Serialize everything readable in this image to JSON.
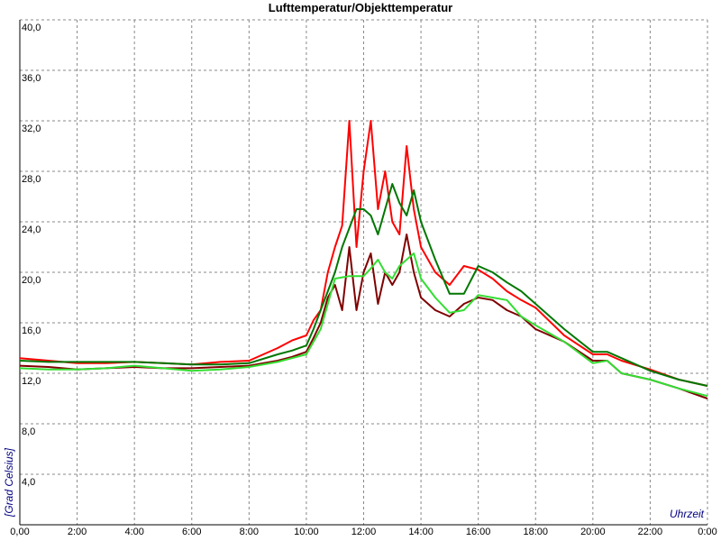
{
  "chart_data": {
    "type": "line",
    "title": "Lufttemperatur/Objekttemperatur",
    "y_label": "[Grad Celsius]",
    "x_label": "Uhrzeit",
    "grid": true,
    "xlim": [
      0,
      24
    ],
    "ylim": [
      0,
      40
    ],
    "xticks": [
      {
        "value": 0,
        "label": "0,00"
      },
      {
        "value": 2,
        "label": "2:00"
      },
      {
        "value": 4,
        "label": "4:00"
      },
      {
        "value": 6,
        "label": "6:00"
      },
      {
        "value": 8,
        "label": "8:00"
      },
      {
        "value": 10,
        "label": "10:00"
      },
      {
        "value": 12,
        "label": "12:00"
      },
      {
        "value": 14,
        "label": "14:00"
      },
      {
        "value": 16,
        "label": "16:00"
      },
      {
        "value": 18,
        "label": "18:00"
      },
      {
        "value": 20,
        "label": "20:00"
      },
      {
        "value": 22,
        "label": "22:00"
      },
      {
        "value": 24,
        "label": "0:00"
      }
    ],
    "yticks": [
      {
        "value": 4,
        "label": "4,0"
      },
      {
        "value": 8,
        "label": "8,0"
      },
      {
        "value": 12,
        "label": "12,0"
      },
      {
        "value": 16,
        "label": "16,0"
      },
      {
        "value": 20,
        "label": "20,0"
      },
      {
        "value": 24,
        "label": "24,0"
      },
      {
        "value": 28,
        "label": "28,0"
      },
      {
        "value": 32,
        "label": "32,0"
      },
      {
        "value": 36,
        "label": "36,0"
      },
      {
        "value": 40,
        "label": "40,0"
      }
    ],
    "x": [
      0,
      1,
      2,
      3,
      4,
      5,
      6,
      7,
      8,
      9,
      9.5,
      10,
      10.25,
      10.5,
      10.75,
      11,
      11.25,
      11.5,
      11.75,
      12,
      12.25,
      12.5,
      12.75,
      13,
      13.25,
      13.5,
      13.75,
      14,
      14.5,
      15,
      15.5,
      16,
      16.5,
      17,
      17.5,
      18,
      19,
      20,
      20.5,
      21,
      22,
      23,
      24
    ],
    "series": [
      {
        "color": "#800000",
        "values": [
          12.6,
          12.5,
          12.3,
          12.4,
          12.5,
          12.4,
          12.4,
          12.5,
          12.6,
          13.0,
          13.3,
          13.7,
          14.8,
          16,
          18,
          19,
          17,
          22,
          17,
          20,
          21.5,
          17.5,
          20,
          19,
          20,
          23,
          20,
          18,
          17,
          16.5,
          17.5,
          18,
          17.8,
          17,
          16.5,
          15.5,
          14.5,
          13,
          13,
          12,
          11.5,
          10.8,
          10
        ]
      },
      {
        "color": "#ff0000",
        "values": [
          13.2,
          13.0,
          12.8,
          12.8,
          12.9,
          12.8,
          12.7,
          12.9,
          13.0,
          14.0,
          14.6,
          15.0,
          16.2,
          17,
          20,
          22,
          23.7,
          32,
          22,
          28,
          32,
          25,
          28,
          24,
          23,
          30,
          25,
          22,
          20,
          19,
          20.5,
          20.2,
          19.5,
          18.5,
          17.8,
          17.2,
          15,
          13.5,
          13.5,
          13,
          12.3,
          11.5,
          11
        ]
      },
      {
        "color": "#007700",
        "values": [
          13,
          12.9,
          12.9,
          12.9,
          12.9,
          12.8,
          12.7,
          12.7,
          12.8,
          13.5,
          13.8,
          14.2,
          15.5,
          17,
          18.5,
          20,
          22,
          23.5,
          25,
          25,
          24.5,
          23,
          25,
          27,
          25.5,
          24.5,
          26.5,
          24,
          21,
          18.3,
          18.3,
          20.5,
          20,
          19.2,
          18.5,
          17.5,
          15.5,
          13.7,
          13.7,
          13.2,
          12.2,
          11.5,
          11
        ]
      },
      {
        "color": "#33dd33",
        "values": [
          12.4,
          12.3,
          12.3,
          12.4,
          12.6,
          12.4,
          12.2,
          12.3,
          12.5,
          12.9,
          13.2,
          13.5,
          14.5,
          15.5,
          17.5,
          19.5,
          19.6,
          19.7,
          19.7,
          19.7,
          20.3,
          21,
          20,
          19.5,
          20.5,
          21,
          21.5,
          19.5,
          18,
          16.8,
          17,
          18.2,
          18,
          17.8,
          16.5,
          15.8,
          14.5,
          12.8,
          13,
          12,
          11.5,
          10.8,
          10.2
        ]
      }
    ]
  }
}
